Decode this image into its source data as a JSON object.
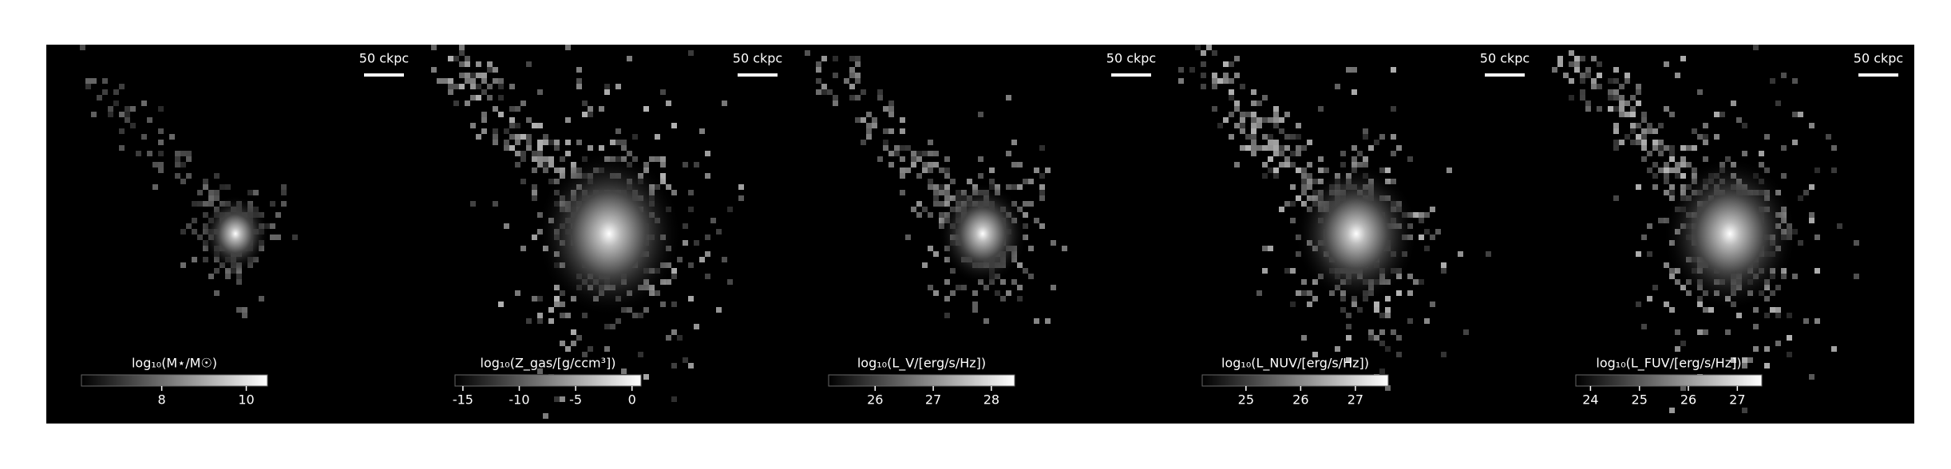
{
  "chart_data": [
    {
      "type": "image",
      "scale_label": "50 ckpc",
      "colorbar_label": "log₁₀(M⋆/M☉)",
      "clim": [
        6.1,
        10.5
      ],
      "cticks": [
        8,
        10
      ]
    },
    {
      "type": "image",
      "scale_label": "50 ckpc",
      "colorbar_label": "log₁₀(Z_gas/[g/ccm³])",
      "clim": [
        -15.7,
        0.8
      ],
      "cticks": [
        -15,
        -10,
        -5,
        0
      ]
    },
    {
      "type": "image",
      "scale_label": "50 ckpc",
      "colorbar_label": "log₁₀(L_V/[erg/s/Hz])",
      "clim": [
        25.2,
        28.4
      ],
      "cticks": [
        26,
        27,
        28
      ]
    },
    {
      "type": "image",
      "scale_label": "50 ckpc",
      "colorbar_label": "log₁₀(L_NUV/[erg/s/Hz])",
      "clim": [
        24.2,
        27.6
      ],
      "cticks": [
        25,
        26,
        27
      ]
    },
    {
      "type": "image",
      "scale_label": "50 ckpc",
      "colorbar_label": "log₁₀(L_FUV/[erg/s/Hz])",
      "clim": [
        23.7,
        27.5
      ],
      "cticks": [
        24,
        25,
        26,
        27
      ]
    }
  ]
}
